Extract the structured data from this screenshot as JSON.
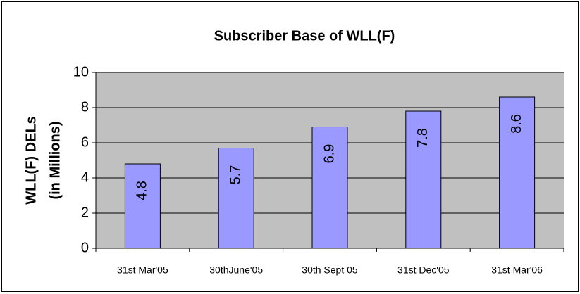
{
  "chart_data": {
    "type": "bar",
    "title": "Subscriber Base  of WLL(F)",
    "ylabel": [
      "WLL(F) DELs",
      "(in Millions)"
    ],
    "categories": [
      "31st Mar'05",
      "30thJune'05",
      "30th Sept 05",
      "31st Dec'05",
      "31st Mar'06"
    ],
    "values": [
      4.8,
      5.7,
      6.9,
      7.8,
      8.6
    ],
    "color": "#9999ff",
    "ylim": [
      0,
      10
    ],
    "yticks": [
      0,
      2,
      4,
      6,
      8,
      10
    ],
    "grid": true,
    "plot_background": "#c0c0c0"
  }
}
